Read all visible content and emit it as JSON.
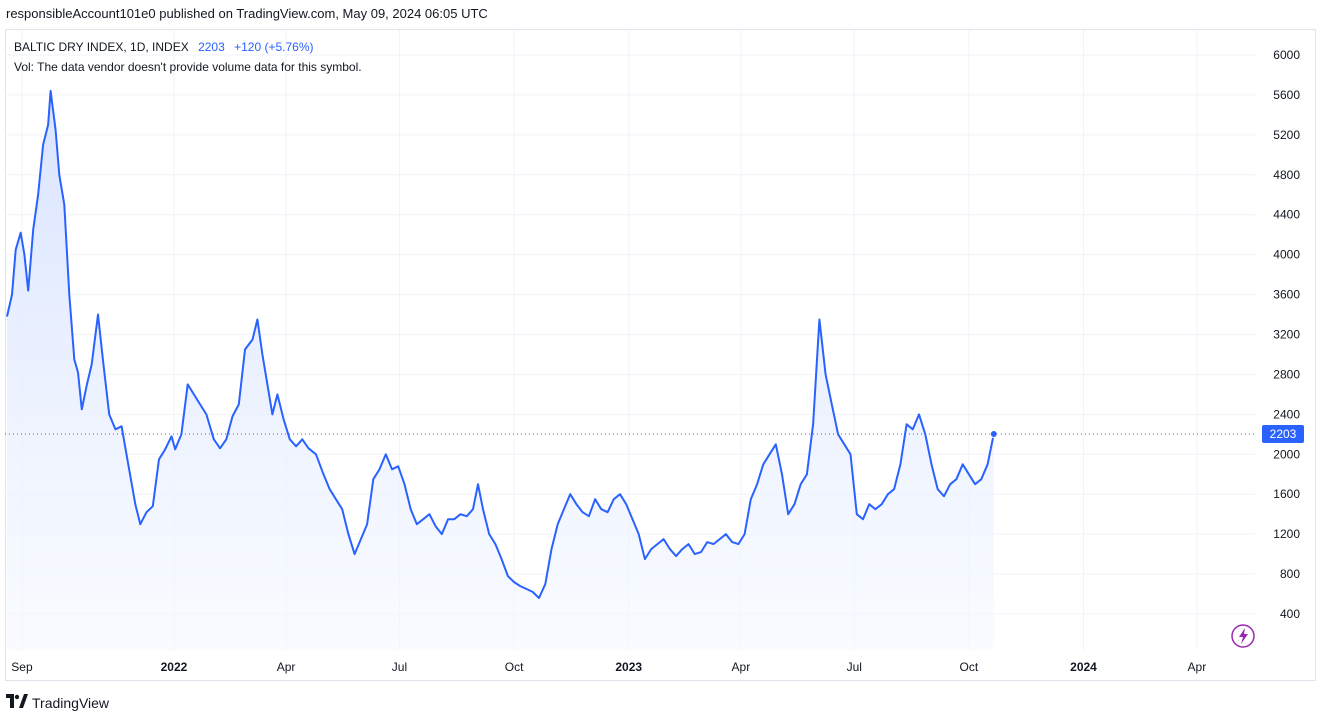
{
  "credit": "responsibleAccount101e0 published on TradingView.com, May 09, 2024 06:05 UTC",
  "legend": {
    "symbol": "BALTIC DRY INDEX, 1D, INDEX",
    "last": "2203",
    "change": "+120 (+5.76%)",
    "volume_note": "Vol: The data vendor doesn't provide volume data for this symbol."
  },
  "logo": {
    "icon": "tradingview-logo-icon",
    "text": "TradingView"
  },
  "colors": {
    "line": "#2962ff",
    "fill_top": "#d6e2ff",
    "fill_bottom": "#f5f8ff",
    "grid": "#f0f3fa",
    "axis_text": "#131722"
  },
  "chart_data": {
    "type": "area",
    "title": "BALTIC DRY INDEX, 1D, INDEX",
    "ylim": [
      200,
      6200
    ],
    "y_ticks": [
      400,
      800,
      1200,
      1600,
      2000,
      2400,
      2800,
      3200,
      3600,
      4000,
      4400,
      4800,
      5200,
      5600,
      6000
    ],
    "x_ticks": [
      {
        "label": "Sep",
        "date": "2021-09-01"
      },
      {
        "label": "2022",
        "date": "2022-01-01"
      },
      {
        "label": "Apr",
        "date": "2022-04-01"
      },
      {
        "label": "Jul",
        "date": "2022-07-01"
      },
      {
        "label": "Oct",
        "date": "2022-10-01"
      },
      {
        "label": "2023",
        "date": "2023-01-01"
      },
      {
        "label": "Apr",
        "date": "2023-04-01"
      },
      {
        "label": "Jul",
        "date": "2023-07-01"
      },
      {
        "label": "Oct",
        "date": "2023-10-01"
      },
      {
        "label": "2024",
        "date": "2024-01-01"
      },
      {
        "label": "Apr",
        "date": "2024-04-01"
      }
    ],
    "last_value": 2203,
    "grid": true,
    "series": [
      {
        "points": [
          [
            "2021-08-20",
            3380
          ],
          [
            "2021-08-24",
            3600
          ],
          [
            "2021-08-27",
            4050
          ],
          [
            "2021-08-31",
            4220
          ],
          [
            "2021-09-03",
            4000
          ],
          [
            "2021-09-06",
            3640
          ],
          [
            "2021-09-10",
            4250
          ],
          [
            "2021-09-14",
            4600
          ],
          [
            "2021-09-18",
            5100
          ],
          [
            "2021-09-22",
            5300
          ],
          [
            "2021-09-24",
            5640
          ],
          [
            "2021-09-28",
            5250
          ],
          [
            "2021-10-01",
            4800
          ],
          [
            "2021-10-05",
            4500
          ],
          [
            "2021-10-09",
            3600
          ],
          [
            "2021-10-13",
            2950
          ],
          [
            "2021-10-16",
            2820
          ],
          [
            "2021-10-19",
            2450
          ],
          [
            "2021-10-23",
            2690
          ],
          [
            "2021-10-27",
            2900
          ],
          [
            "2021-11-01",
            3400
          ],
          [
            "2021-11-05",
            2950
          ],
          [
            "2021-11-10",
            2400
          ],
          [
            "2021-11-15",
            2250
          ],
          [
            "2021-11-20",
            2280
          ],
          [
            "2021-11-25",
            1920
          ],
          [
            "2021-12-01",
            1500
          ],
          [
            "2021-12-05",
            1300
          ],
          [
            "2021-12-10",
            1420
          ],
          [
            "2021-12-15",
            1480
          ],
          [
            "2021-12-20",
            1950
          ],
          [
            "2021-12-25",
            2050
          ],
          [
            "2021-12-30",
            2180
          ],
          [
            "2022-01-02",
            2050
          ],
          [
            "2022-01-07",
            2200
          ],
          [
            "2022-01-12",
            2700
          ],
          [
            "2022-01-17",
            2600
          ],
          [
            "2022-01-22",
            2500
          ],
          [
            "2022-01-27",
            2400
          ],
          [
            "2022-02-02",
            2150
          ],
          [
            "2022-02-07",
            2060
          ],
          [
            "2022-02-12",
            2150
          ],
          [
            "2022-02-17",
            2380
          ],
          [
            "2022-02-22",
            2500
          ],
          [
            "2022-02-27",
            3050
          ],
          [
            "2022-03-05",
            3150
          ],
          [
            "2022-03-09",
            3350
          ],
          [
            "2022-03-13",
            3000
          ],
          [
            "2022-03-17",
            2700
          ],
          [
            "2022-03-21",
            2400
          ],
          [
            "2022-03-25",
            2600
          ],
          [
            "2022-03-30",
            2350
          ],
          [
            "2022-04-04",
            2150
          ],
          [
            "2022-04-09",
            2080
          ],
          [
            "2022-04-14",
            2150
          ],
          [
            "2022-04-19",
            2060
          ],
          [
            "2022-04-25",
            2000
          ],
          [
            "2022-05-01",
            1800
          ],
          [
            "2022-05-06",
            1650
          ],
          [
            "2022-05-11",
            1550
          ],
          [
            "2022-05-16",
            1450
          ],
          [
            "2022-05-21",
            1200
          ],
          [
            "2022-05-26",
            1000
          ],
          [
            "2022-05-31",
            1150
          ],
          [
            "2022-06-05",
            1300
          ],
          [
            "2022-06-10",
            1750
          ],
          [
            "2022-06-15",
            1850
          ],
          [
            "2022-06-20",
            2000
          ],
          [
            "2022-06-25",
            1850
          ],
          [
            "2022-06-30",
            1880
          ],
          [
            "2022-07-05",
            1700
          ],
          [
            "2022-07-10",
            1450
          ],
          [
            "2022-07-15",
            1300
          ],
          [
            "2022-07-20",
            1350
          ],
          [
            "2022-07-25",
            1400
          ],
          [
            "2022-07-30",
            1280
          ],
          [
            "2022-08-04",
            1200
          ],
          [
            "2022-08-09",
            1350
          ],
          [
            "2022-08-14",
            1350
          ],
          [
            "2022-08-19",
            1400
          ],
          [
            "2022-08-24",
            1380
          ],
          [
            "2022-08-29",
            1450
          ],
          [
            "2022-09-02",
            1700
          ],
          [
            "2022-09-06",
            1450
          ],
          [
            "2022-09-11",
            1200
          ],
          [
            "2022-09-16",
            1100
          ],
          [
            "2022-09-21",
            950
          ],
          [
            "2022-09-26",
            780
          ],
          [
            "2022-10-01",
            720
          ],
          [
            "2022-10-06",
            680
          ],
          [
            "2022-10-11",
            650
          ],
          [
            "2022-10-16",
            620
          ],
          [
            "2022-10-21",
            560
          ],
          [
            "2022-10-26",
            700
          ],
          [
            "2022-10-31",
            1050
          ],
          [
            "2022-11-05",
            1300
          ],
          [
            "2022-11-10",
            1450
          ],
          [
            "2022-11-15",
            1600
          ],
          [
            "2022-11-20",
            1500
          ],
          [
            "2022-11-25",
            1420
          ],
          [
            "2022-11-30",
            1380
          ],
          [
            "2022-12-05",
            1550
          ],
          [
            "2022-12-10",
            1450
          ],
          [
            "2022-12-15",
            1420
          ],
          [
            "2022-12-20",
            1550
          ],
          [
            "2022-12-25",
            1600
          ],
          [
            "2022-12-30",
            1500
          ],
          [
            "2023-01-04",
            1350
          ],
          [
            "2023-01-09",
            1200
          ],
          [
            "2023-01-14",
            950
          ],
          [
            "2023-01-19",
            1050
          ],
          [
            "2023-01-24",
            1100
          ],
          [
            "2023-01-29",
            1150
          ],
          [
            "2023-02-03",
            1050
          ],
          [
            "2023-02-08",
            980
          ],
          [
            "2023-02-13",
            1050
          ],
          [
            "2023-02-18",
            1100
          ],
          [
            "2023-02-23",
            1000
          ],
          [
            "2023-02-28",
            1020
          ],
          [
            "2023-03-05",
            1120
          ],
          [
            "2023-03-10",
            1100
          ],
          [
            "2023-03-15",
            1150
          ],
          [
            "2023-03-20",
            1200
          ],
          [
            "2023-03-25",
            1120
          ],
          [
            "2023-03-30",
            1100
          ],
          [
            "2023-04-04",
            1200
          ],
          [
            "2023-04-09",
            1550
          ],
          [
            "2023-04-14",
            1700
          ],
          [
            "2023-04-19",
            1900
          ],
          [
            "2023-04-24",
            2000
          ],
          [
            "2023-04-29",
            2100
          ],
          [
            "2023-05-04",
            1800
          ],
          [
            "2023-05-09",
            1400
          ],
          [
            "2023-05-14",
            1500
          ],
          [
            "2023-05-19",
            1700
          ],
          [
            "2023-05-24",
            1800
          ],
          [
            "2023-05-29",
            2300
          ],
          [
            "2023-06-03",
            3350
          ],
          [
            "2023-06-08",
            2800
          ],
          [
            "2023-06-13",
            2500
          ],
          [
            "2023-06-18",
            2200
          ],
          [
            "2023-06-23",
            2100
          ],
          [
            "2023-06-28",
            2000
          ],
          [
            "2023-07-03",
            1400
          ],
          [
            "2023-07-08",
            1350
          ],
          [
            "2023-07-13",
            1500
          ],
          [
            "2023-07-18",
            1450
          ],
          [
            "2023-07-23",
            1500
          ],
          [
            "2023-07-28",
            1600
          ],
          [
            "2023-08-02",
            1650
          ],
          [
            "2023-08-07",
            1900
          ],
          [
            "2023-08-12",
            2300
          ],
          [
            "2023-08-17",
            2250
          ],
          [
            "2023-08-22",
            2400
          ],
          [
            "2023-08-27",
            2200
          ],
          [
            "2023-09-01",
            1900
          ],
          [
            "2023-09-06",
            1650
          ],
          [
            "2023-09-11",
            1580
          ],
          [
            "2023-09-16",
            1700
          ],
          [
            "2023-09-21",
            1750
          ],
          [
            "2023-09-26",
            1900
          ],
          [
            "2023-10-01",
            1800
          ],
          [
            "2023-10-06",
            1700
          ],
          [
            "2023-10-11",
            1750
          ],
          [
            "2023-10-16",
            1900
          ],
          [
            "2023-10-21",
            2203
          ]
        ]
      }
    ]
  }
}
